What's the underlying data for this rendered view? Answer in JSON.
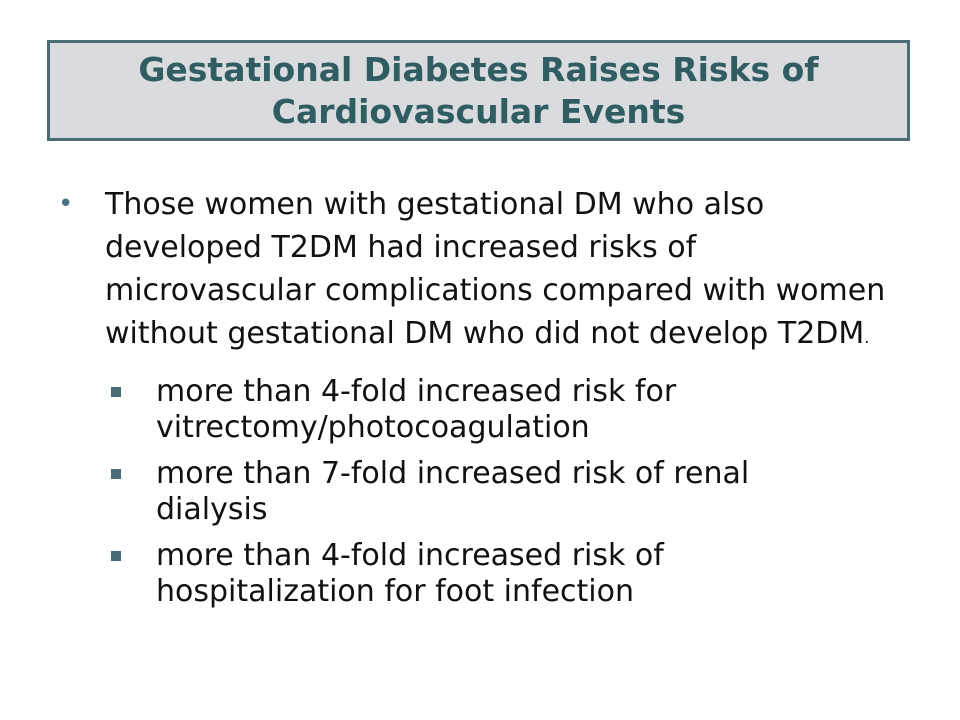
{
  "slide": {
    "title": "Gestational Diabetes Raises Risks of Cardiovascular Events",
    "bullet": {
      "text": "Those women with gestational DM who also developed T2DM had increased risks of microvascular complications compared with women without gestational DM who did not develop T2DM",
      "tail": "."
    },
    "subpoints": [
      "more than 4-fold increased risk for vitrectomy/photocoagulation",
      "more than 7-fold increased risk of renal dialysis",
      "more than 4-fold increased risk of hospitalization for foot infection"
    ]
  },
  "colors": {
    "title_text": "#2f5d62",
    "title_border": "#486d77",
    "title_fill": "#d9dbde",
    "bullet_accent": "#4b7580"
  }
}
